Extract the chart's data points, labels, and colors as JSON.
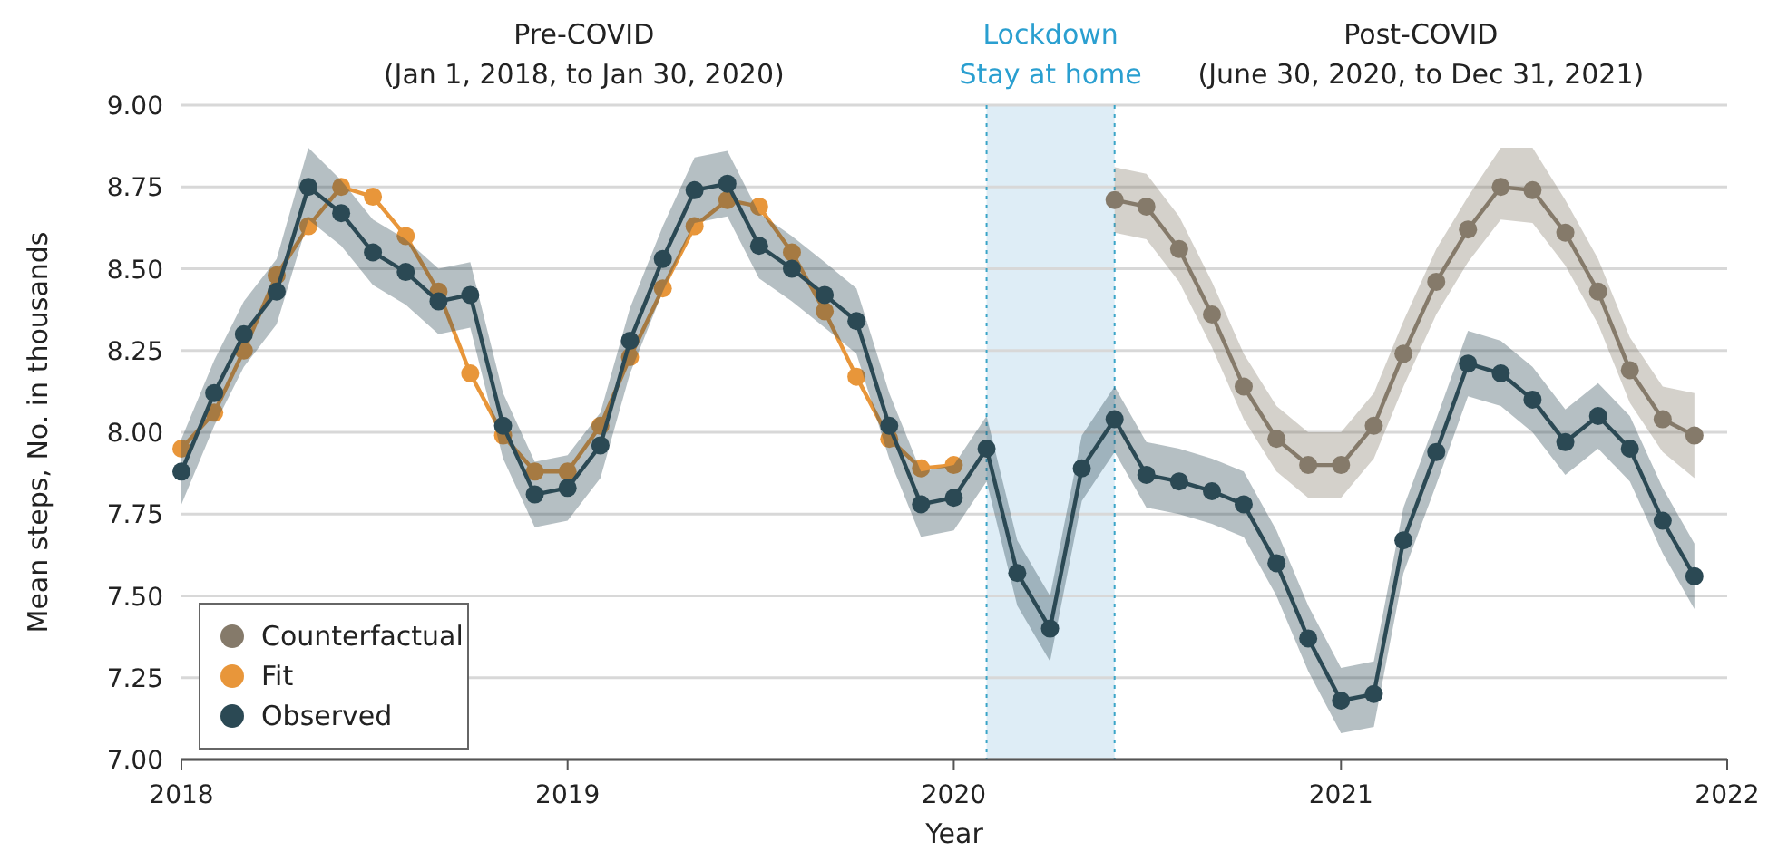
{
  "chart_data": {
    "type": "line",
    "xlabel": "Year",
    "ylabel": "Mean steps, No. in thousands",
    "xlim": [
      "2018-01",
      "2022-01"
    ],
    "xticks": [
      "2018",
      "2019",
      "2020",
      "2021",
      "2022"
    ],
    "ylim": [
      7,
      9
    ],
    "yticks": [
      {
        "value": 7,
        "label": "7.00"
      },
      {
        "value": 7.25,
        "label": "7.25"
      },
      {
        "value": 7.5,
        "label": "7.50"
      },
      {
        "value": 7.75,
        "label": "7.75"
      },
      {
        "value": 8,
        "label": "8.00"
      },
      {
        "value": 8.25,
        "label": "8.25"
      },
      {
        "value": 8.5,
        "label": "8.50"
      },
      {
        "value": 8.75,
        "label": "8.75"
      },
      {
        "value": 9,
        "label": "9.00"
      }
    ],
    "grid": "y",
    "legend": "bottom left",
    "marker": "circle",
    "line_style": "solid",
    "bands": [
      {
        "axis": "x",
        "from": "2020-02",
        "to": "2020-06",
        "label": "Lockdown\nStay at home",
        "color": "#deedf6"
      }
    ],
    "ref_lines": [
      {
        "axis": "x",
        "value": "2020-02",
        "color": "#3aa5c8",
        "line_style": "dotted"
      },
      {
        "axis": "x",
        "value": "2020-06",
        "color": "#3aa5c8",
        "line_style": "dotted"
      }
    ],
    "annotations": [
      "Pre-COVID\n(Jan 1, 2018, to Jan 30, 2020)",
      "Post-COVID\n(June 30, 2020, to Dec 31, 2021)"
    ],
    "series": [
      {
        "name": "Counterfactual",
        "color": "#857a6a",
        "x": [
          "2020-06",
          "2020-07",
          "2020-08",
          "2020-09",
          "2020-10",
          "2020-11",
          "2020-12",
          "2021-01",
          "2021-02",
          "2021-03",
          "2021-04",
          "2021-05",
          "2021-06",
          "2021-07",
          "2021-08",
          "2021-09",
          "2021-10",
          "2021-11",
          "2021-12"
        ],
        "values": [
          8.71,
          8.69,
          8.56,
          8.36,
          8.14,
          7.98,
          7.9,
          7.9,
          8.02,
          8.24,
          8.46,
          8.62,
          8.75,
          8.74,
          8.61,
          8.43,
          8.19,
          8.04,
          7.99
        ],
        "lower": [
          8.61,
          8.59,
          8.46,
          8.26,
          8.04,
          7.88,
          7.8,
          7.8,
          7.92,
          8.14,
          8.36,
          8.52,
          8.65,
          8.64,
          8.51,
          8.33,
          8.09,
          7.94,
          7.86
        ],
        "upper": [
          8.81,
          8.79,
          8.66,
          8.46,
          8.24,
          8.08,
          8.0,
          8.0,
          8.12,
          8.34,
          8.56,
          8.72,
          8.87,
          8.87,
          8.71,
          8.53,
          8.29,
          8.14,
          8.12
        ]
      },
      {
        "name": "Fit",
        "color": "#e8963a",
        "x": [
          "2018-01",
          "2018-02",
          "2018-03",
          "2018-04",
          "2018-05",
          "2018-06",
          "2018-07",
          "2018-08",
          "2018-09",
          "2018-10",
          "2018-11",
          "2018-12",
          "2019-01",
          "2019-02",
          "2019-03",
          "2019-04",
          "2019-05",
          "2019-06",
          "2019-07",
          "2019-08",
          "2019-09",
          "2019-10",
          "2019-11",
          "2019-12",
          "2020-01"
        ],
        "values": [
          7.95,
          8.06,
          8.25,
          8.48,
          8.63,
          8.75,
          8.72,
          8.6,
          8.43,
          8.18,
          7.99,
          7.88,
          7.88,
          8.02,
          8.23,
          8.44,
          8.63,
          8.71,
          8.69,
          8.55,
          8.37,
          8.17,
          7.98,
          7.89,
          7.9
        ]
      },
      {
        "name": "Observed",
        "color": "#2b4954",
        "x": [
          "2018-01",
          "2018-02",
          "2018-03",
          "2018-04",
          "2018-05",
          "2018-06",
          "2018-07",
          "2018-08",
          "2018-09",
          "2018-10",
          "2018-11",
          "2018-12",
          "2019-01",
          "2019-02",
          "2019-03",
          "2019-04",
          "2019-05",
          "2019-06",
          "2019-07",
          "2019-08",
          "2019-09",
          "2019-10",
          "2019-11",
          "2019-12",
          "2020-01",
          "2020-02",
          "2020-03",
          "2020-04",
          "2020-05",
          "2020-06",
          "2020-07",
          "2020-08",
          "2020-09",
          "2020-10",
          "2020-11",
          "2020-12",
          "2021-01",
          "2021-02",
          "2021-03",
          "2021-04",
          "2021-05",
          "2021-06",
          "2021-07",
          "2021-08",
          "2021-09",
          "2021-10",
          "2021-11",
          "2021-12"
        ],
        "values": [
          7.88,
          8.12,
          8.3,
          8.43,
          8.75,
          8.67,
          8.55,
          8.49,
          8.4,
          8.42,
          8.02,
          7.81,
          7.83,
          7.96,
          8.28,
          8.53,
          8.74,
          8.76,
          8.57,
          8.5,
          8.42,
          8.34,
          8.02,
          7.78,
          7.8,
          7.95,
          7.57,
          7.4,
          7.89,
          8.04,
          7.87,
          7.85,
          7.82,
          7.78,
          7.6,
          7.37,
          7.18,
          7.2,
          7.67,
          7.94,
          8.21,
          8.18,
          8.1,
          7.97,
          8.05,
          7.95,
          7.73,
          7.56
        ],
        "lower": [
          7.78,
          8.02,
          8.2,
          8.33,
          8.65,
          8.57,
          8.45,
          8.39,
          8.3,
          8.32,
          7.92,
          7.71,
          7.73,
          7.86,
          8.18,
          8.43,
          8.64,
          8.66,
          8.47,
          8.4,
          8.32,
          8.24,
          7.92,
          7.68,
          7.7,
          7.85,
          7.47,
          7.3,
          7.79,
          7.94,
          7.77,
          7.75,
          7.72,
          7.68,
          7.5,
          7.27,
          7.08,
          7.1,
          7.57,
          7.84,
          8.11,
          8.08,
          8.0,
          7.87,
          7.95,
          7.85,
          7.63,
          7.46
        ],
        "upper": [
          7.98,
          8.22,
          8.4,
          8.53,
          8.87,
          8.77,
          8.65,
          8.59,
          8.5,
          8.52,
          8.12,
          7.91,
          7.93,
          8.06,
          8.38,
          8.63,
          8.84,
          8.86,
          8.67,
          8.6,
          8.52,
          8.44,
          8.12,
          7.88,
          7.9,
          8.05,
          7.67,
          7.5,
          7.99,
          8.14,
          7.97,
          7.95,
          7.92,
          7.88,
          7.7,
          7.47,
          7.28,
          7.3,
          7.77,
          8.04,
          8.31,
          8.28,
          8.2,
          8.07,
          8.15,
          8.05,
          7.83,
          7.66
        ]
      }
    ]
  }
}
